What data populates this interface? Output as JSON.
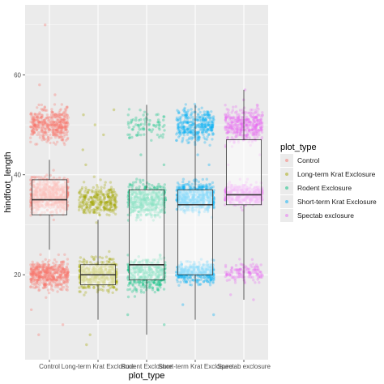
{
  "chart_data": {
    "type": "scatter",
    "subtype": "jitter-with-boxplot",
    "xlabel": "plot_type",
    "ylabel": "hindfoot_length",
    "ylim": [
      3,
      74
    ],
    "yticks": [
      20,
      40,
      60
    ],
    "grid": true,
    "legend": {
      "title": "plot_type",
      "position": "right"
    },
    "categories": [
      "Control",
      "Long-term Krat Exclosure",
      "Rodent Exclosure",
      "Short-term Krat Exclosure",
      "Spectab exclosure"
    ],
    "colors": [
      "#F8766D",
      "#A3A500",
      "#00BF7D",
      "#00B0F6",
      "#E76BF3"
    ],
    "series": [
      {
        "name": "Control",
        "q1": 32,
        "median": 35,
        "q3": 39,
        "whisker_low": 25,
        "whisker_high": 43,
        "clusters": [
          {
            "center": 50,
            "spread": 3,
            "n": 420
          },
          {
            "center": 36,
            "spread": 3,
            "n": 700
          },
          {
            "center": 20,
            "spread": 2.5,
            "n": 480
          }
        ],
        "outliers": [
          70,
          56,
          58,
          54,
          13,
          10,
          8
        ]
      },
      {
        "name": "Long-term Krat Exclosure",
        "q1": 18,
        "median": 20,
        "q3": 22,
        "whisker_low": 11,
        "whisker_high": 31,
        "clusters": [
          {
            "center": 35,
            "spread": 3,
            "n": 300
          },
          {
            "center": 20,
            "spread": 2.8,
            "n": 480
          }
        ],
        "outliers": [
          53,
          52,
          50,
          48,
          45,
          42,
          6,
          8
        ]
      },
      {
        "name": "Rodent Exclosure",
        "q1": 19,
        "median": 22,
        "q3": 37,
        "whisker_low": 8,
        "whisker_high": 54,
        "clusters": [
          {
            "center": 50,
            "spread": 3,
            "n": 80
          },
          {
            "center": 35,
            "spread": 3,
            "n": 480
          },
          {
            "center": 20,
            "spread": 3,
            "n": 380
          }
        ],
        "outliers": [
          44,
          42,
          12,
          10
        ]
      },
      {
        "name": "Short-term Krat Exclosure",
        "q1": 20,
        "median": 34,
        "q3": 37,
        "whisker_low": 11,
        "whisker_high": 54,
        "clusters": [
          {
            "center": 50,
            "spread": 3,
            "n": 320
          },
          {
            "center": 35.5,
            "spread": 2.5,
            "n": 560
          },
          {
            "center": 20.5,
            "spread": 2,
            "n": 360
          }
        ],
        "outliers": [
          44,
          42,
          14,
          12
        ]
      },
      {
        "name": "Spectab exclosure",
        "q1": 34,
        "median": 36,
        "q3": 47,
        "whisker_low": 15,
        "whisker_high": 57,
        "clusters": [
          {
            "center": 50,
            "spread": 3,
            "n": 380
          },
          {
            "center": 36,
            "spread": 2,
            "n": 420
          },
          {
            "center": 20.5,
            "spread": 2,
            "n": 130
          }
        ],
        "outliers": [
          57,
          55,
          44,
          42,
          16,
          15
        ]
      }
    ]
  }
}
